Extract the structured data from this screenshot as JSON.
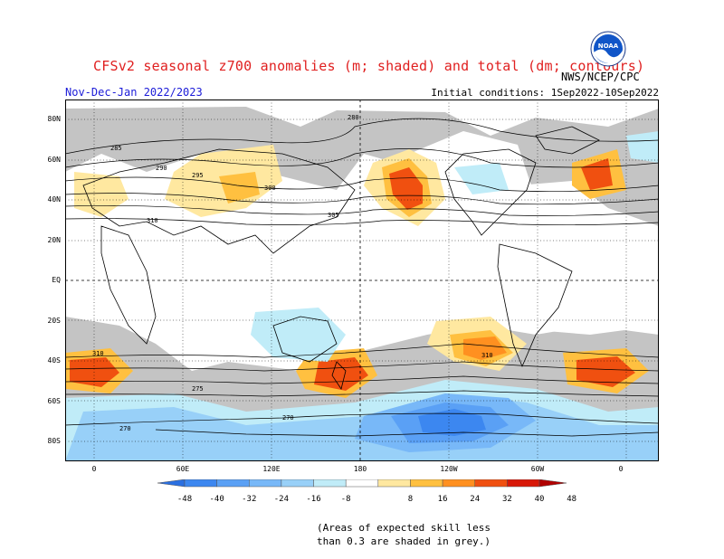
{
  "header": {
    "title": "CFSv2 seasonal z700 anomalies (m; shaded) and total (dm; contours)",
    "period": "Nov-Dec-Jan 2022/2023",
    "initial_conditions": "Initial conditions: 1Sep2022-10Sep2022",
    "agency": "NWS/NCEP/CPC",
    "logo_text": "NOAA"
  },
  "map": {
    "lat_labels": [
      "80N",
      "60N",
      "40N",
      "20N",
      "EQ",
      "20S",
      "40S",
      "60S",
      "80S"
    ],
    "lon_labels": [
      "0",
      "60E",
      "120E",
      "180",
      "120W",
      "60W",
      "0"
    ],
    "contour_labels": [
      "280",
      "285",
      "290",
      "295",
      "300",
      "305",
      "310",
      "270",
      "275"
    ]
  },
  "colorbar": {
    "labels": [
      "-48",
      "-40",
      "-32",
      "-24",
      "-16",
      "-8",
      "8",
      "16",
      "24",
      "32",
      "40",
      "48"
    ],
    "colors": [
      "#2a6fe0",
      "#3c87f0",
      "#5aa0f5",
      "#78b8f8",
      "#98d0f8",
      "#c0ecf8",
      "#ffffff",
      "#ffe8a0",
      "#ffc040",
      "#ff9020",
      "#f05010",
      "#d81808",
      "#b00000"
    ]
  },
  "note": {
    "line1": "(Areas of expected skill less",
    "line2": "than 0.3 are shaded in grey.)"
  }
}
